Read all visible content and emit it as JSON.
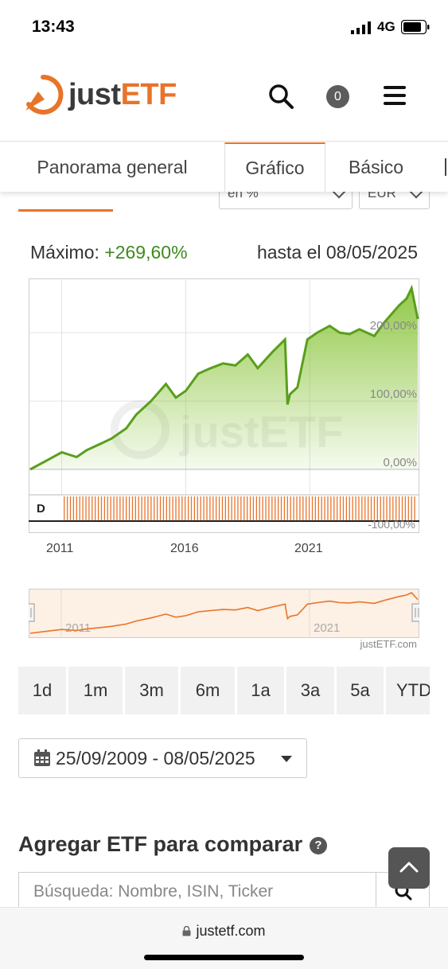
{
  "status_bar": {
    "time": "13:43",
    "network": "4G"
  },
  "header": {
    "logo_just": "just",
    "logo_etf": "ETF",
    "watchlist_count": "0"
  },
  "tabs": [
    {
      "label": "Panorama general"
    },
    {
      "label": "Gráfico",
      "active": true
    },
    {
      "label": "Básico"
    }
  ],
  "section": {
    "heading": "Gráfico",
    "select_type": "en %",
    "select_currency": "EUR"
  },
  "summary": {
    "max_label": "Máximo:",
    "max_value": "+269,60%",
    "until_text": "hasta el 08/05/2025"
  },
  "colors": {
    "accent": "#e8742a",
    "positive": "#3d8a1e",
    "line": "#5a9e1c",
    "fill_top": "#8cc63f"
  },
  "chart_data": {
    "type": "area",
    "x_ticks": [
      "2011",
      "2016",
      "2021"
    ],
    "y_ticks": [
      "0,00%",
      "100,00%",
      "200,00%"
    ],
    "y_unit": "%",
    "ylim": [
      0,
      270
    ],
    "x": [
      2009.73,
      2010.5,
      2011.0,
      2011.6,
      2012.0,
      2012.6,
      2013.0,
      2013.6,
      2014.0,
      2014.6,
      2015.2,
      2015.6,
      2016.0,
      2016.5,
      2017.0,
      2017.5,
      2018.0,
      2018.5,
      2018.9,
      2019.5,
      2020.0,
      2020.1,
      2020.2,
      2020.5,
      2020.9,
      2021.3,
      2021.8,
      2022.2,
      2022.6,
      2023.0,
      2023.6,
      2024.0,
      2024.6,
      2024.9,
      2025.1,
      2025.35
    ],
    "values": [
      0,
      15,
      25,
      18,
      28,
      38,
      45,
      60,
      80,
      100,
      125,
      105,
      115,
      140,
      148,
      155,
      152,
      168,
      148,
      172,
      190,
      95,
      110,
      120,
      190,
      200,
      210,
      200,
      198,
      205,
      195,
      215,
      240,
      250,
      265,
      220
    ],
    "navigator_ticks": [
      "2011",
      "2021"
    ],
    "distribution_label": "D",
    "lower_pane_tick": "-100,00%"
  },
  "credit": "justETF.com",
  "range_buttons": [
    "1d",
    "1m",
    "3m",
    "6m",
    "1a",
    "3a",
    "5a",
    "YTD"
  ],
  "date_range": "25/09/2009 - 08/05/2025",
  "compare": {
    "title": "Agregar ETF para comparar",
    "help": "?",
    "search_placeholder": "Búsqueda: Nombre, ISIN, Ticker"
  },
  "browser": {
    "url": "justetf.com"
  }
}
